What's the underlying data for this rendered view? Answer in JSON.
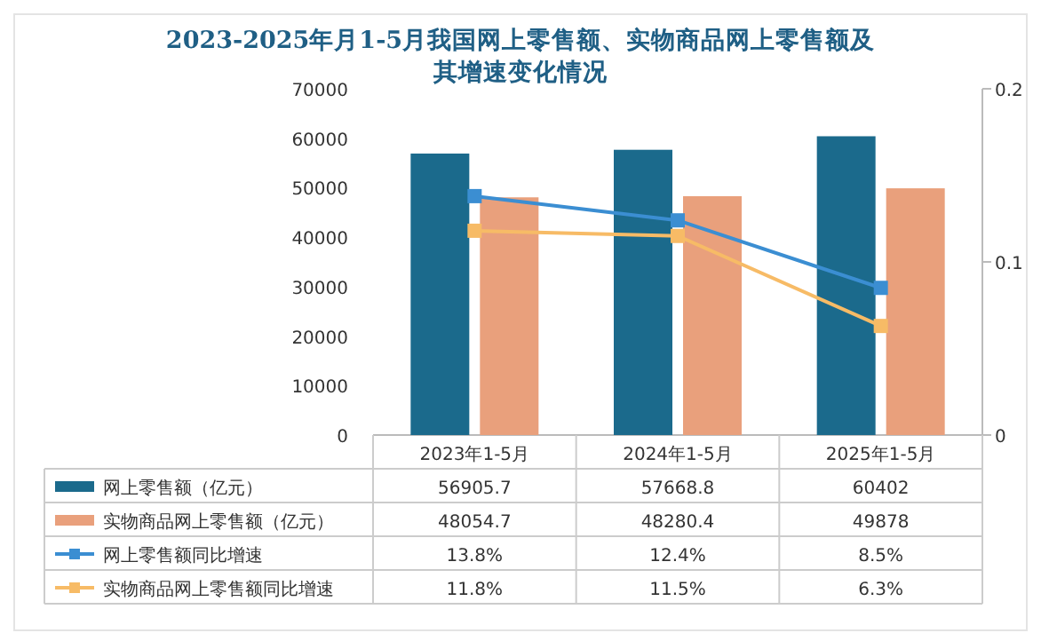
{
  "chart_data": {
    "type": "bar",
    "title": "2023-2025年月1-5月我国网上零售额、实物商品网上零售额及其增速变化情况",
    "categories": [
      "2023年1-5月",
      "2024年1-5月",
      "2025年1-5月"
    ],
    "series": [
      {
        "name": "网上零售额（亿元）",
        "color": "#1b6a8c",
        "values": [
          56905.7,
          57668.8,
          60402
        ],
        "value_labels": [
          "56905.7",
          "57668.8",
          "60402"
        ]
      },
      {
        "name": "实物商品网上零售额（亿元）",
        "color": "#e9a07c",
        "values": [
          48054.7,
          48280.4,
          49878
        ],
        "value_labels": [
          "48054.7",
          "48280.4",
          "49878"
        ]
      },
      {
        "name": "网上零售额同比增速",
        "type": "line",
        "axis": "y2",
        "color": "#3b8ed2",
        "marker": "square",
        "values": [
          0.138,
          0.124,
          0.085
        ],
        "value_labels": [
          "13.8%",
          "12.4%",
          "8.5%"
        ]
      },
      {
        "name": "实物商品网上零售额同比增速",
        "type": "line",
        "axis": "y2",
        "color": "#f7bb66",
        "marker": "square",
        "values": [
          0.118,
          0.115,
          0.063
        ],
        "value_labels": [
          "11.8%",
          "11.5%",
          "6.3%"
        ]
      }
    ],
    "ylim": [
      0,
      70000
    ],
    "yticks": [
      0,
      10000,
      20000,
      30000,
      40000,
      50000,
      60000,
      70000
    ],
    "y2lim": [
      0,
      0.2
    ],
    "y2ticks": [
      0,
      0.1,
      0.2
    ],
    "legend": "bottom",
    "grid": false
  }
}
